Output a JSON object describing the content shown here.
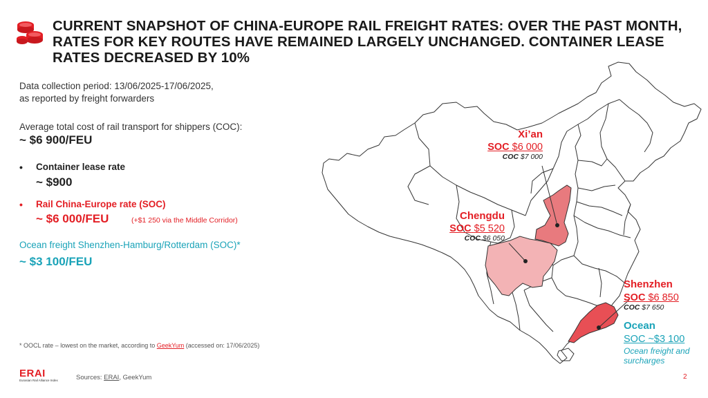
{
  "header": {
    "title": "CURRENT SNAPSHOT OF CHINA-EUROPE RAIL FREIGHT RATES: OVER THE PAST MONTH, RATES FOR KEY ROUTES HAVE REMAINED LARGELY UNCHANGED. CONTAINER LEASE RATES DECREASED BY 10%",
    "icon": "coins-icon"
  },
  "left": {
    "period_line1": "Data collection period: 13/06/2025-17/06/2025,",
    "period_line2": "as reported by freight forwarders",
    "avg_label": "Average total cost of rail transport for shippers (COC):",
    "avg_value": "~ $6 900/FEU",
    "lease_label": "Container lease rate",
    "lease_value": "~ $900",
    "rail_label": "Rail China-Europe rate (SOC)",
    "rail_value": "~ $6 000/FEU",
    "rail_note": "(+$1 250 via the Middle Corridor)",
    "ocean_label": "Ocean freight Shenzhen-Hamburg/Rotterdam (SOC)*",
    "ocean_value": "~ $3 100/FEU",
    "bullet": "•"
  },
  "footnote": {
    "text_before": "* OOCL rate – lowest on the market, according to ",
    "link": "GeekYum",
    "text_after": " (accessed on: 17/06/2025)"
  },
  "footer": {
    "sources_label": "Sources: ",
    "source1": "ERAI",
    "source_sep": ", GeekYum",
    "page_number": "2",
    "logo_text": "ERAI",
    "logo_sub": "Eurasian Rail Alliance Index"
  },
  "map": {
    "xian": {
      "city": "Xi’an",
      "soc_label": "SOC",
      "soc_value": "$6 000",
      "coc_label": "COC",
      "coc_value": "$7 000"
    },
    "chengdu": {
      "city": "Chengdu",
      "soc_label": "SOC",
      "soc_value": "$5 520",
      "coc_label": "COC",
      "coc_value": "$6 050"
    },
    "shenzhen": {
      "city": "Shenzhen",
      "soc_label": "SOC",
      "soc_value": "$6 850",
      "coc_label": "COC",
      "coc_value": "$7 650"
    },
    "ocean": {
      "city": "Ocean",
      "soc": "SOC ~$3 100",
      "note_line1": "Ocean freight and",
      "note_line2": "surcharges"
    },
    "colors": {
      "xian": "#e87a7e",
      "chengdu": "#f3b3b5",
      "shenzhen": "#e84f55",
      "accent": "#e31e24",
      "ocean": "#1aa3b8"
    }
  }
}
